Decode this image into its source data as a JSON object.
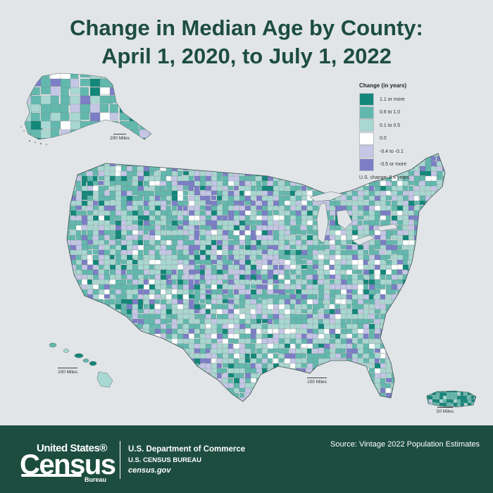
{
  "title": {
    "line1": "Change in Median Age by County:",
    "line2": "April 1, 2020, to July 1, 2022"
  },
  "legend": {
    "title": "Change (in years)",
    "items": [
      {
        "label": "1.1 or more",
        "color": "#13877a"
      },
      {
        "label": "0.6 to 1.0",
        "color": "#63b8ae"
      },
      {
        "label": "0.1 to 0.5",
        "color": "#a9d7d1"
      },
      {
        "label": "0.0",
        "color": "#ffffff"
      },
      {
        "label": "-0.4 to -0.1",
        "color": "#c5c6e6"
      },
      {
        "label": "-0.5 or more",
        "color": "#7c7ec6"
      }
    ],
    "note": "U.S. change: 0.4 years"
  },
  "scale_bars": {
    "alaska": "200 Miles",
    "hawaii": "100 Miles",
    "conus": "100 Miles",
    "puerto_rico": "50 Miles"
  },
  "footer": {
    "logo_top": "United States®",
    "logo_main": "Census",
    "logo_bottom": "Bureau",
    "department": "U.S. Department of Commerce",
    "bureau": "U.S. CENSUS BUREAU",
    "website": "census.gov",
    "source": "Source: Vintage 2022 Population Estimates"
  }
}
